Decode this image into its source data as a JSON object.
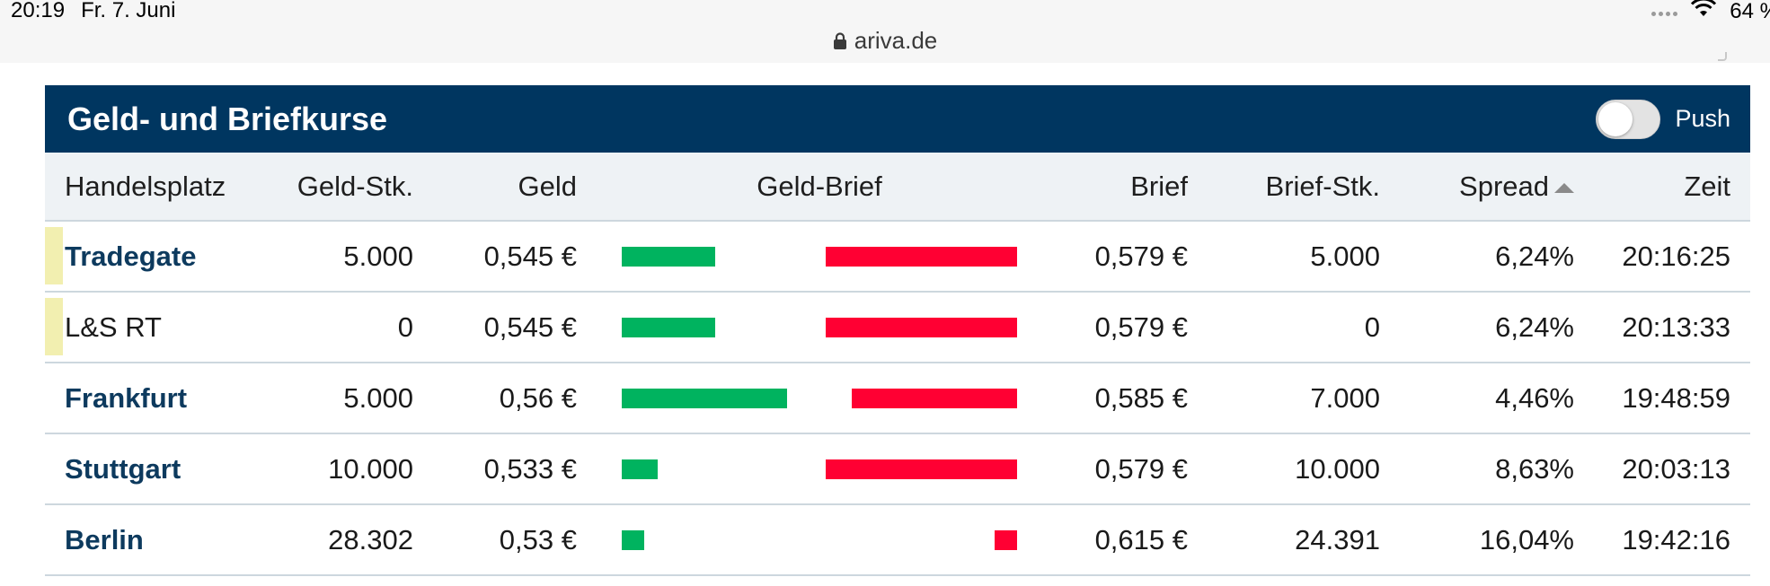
{
  "status_bar": {
    "time": "20:19",
    "date": "Fr. 7. Juni",
    "battery": "64 %",
    "wifi_icon": "wifi-icon"
  },
  "browser": {
    "url": "ariva.de",
    "lock_icon": "lock-icon"
  },
  "widget": {
    "title": "Geld- und Briefkurse",
    "push_label": "Push",
    "push_enabled": false
  },
  "table": {
    "headers": {
      "handelsplatz": "Handelsplatz",
      "geld_stk": "Geld-Stk.",
      "geld": "Geld",
      "geld_brief": "Geld-Brief",
      "brief": "Brief",
      "brief_stk": "Brief-Stk.",
      "spread": "Spread",
      "zeit": "Zeit"
    },
    "sort": {
      "column": "spread",
      "direction": "asc"
    },
    "rows": [
      {
        "handelsplatz": "Tradegate",
        "link": true,
        "highlight": true,
        "geld_stk": "5.000",
        "geld": "0,545 €",
        "brief": "0,579 €",
        "brief_stk": "5.000",
        "spread": "6,24%",
        "zeit": "20:16:25",
        "geld_bar": 0.21,
        "brief_bar": 0.43
      },
      {
        "handelsplatz": "L&S RT",
        "link": false,
        "highlight": true,
        "geld_stk": "0",
        "geld": "0,545 €",
        "brief": "0,579 €",
        "brief_stk": "0",
        "spread": "6,24%",
        "zeit": "20:13:33",
        "geld_bar": 0.21,
        "brief_bar": 0.43
      },
      {
        "handelsplatz": "Frankfurt",
        "link": true,
        "highlight": false,
        "geld_stk": "5.000",
        "geld": "0,56 €",
        "brief": "0,585 €",
        "brief_stk": "7.000",
        "spread": "4,46%",
        "zeit": "19:48:59",
        "geld_bar": 0.37,
        "brief_bar": 0.37
      },
      {
        "handelsplatz": "Stuttgart",
        "link": true,
        "highlight": false,
        "geld_stk": "10.000",
        "geld": "0,533 €",
        "brief": "0,579 €",
        "brief_stk": "10.000",
        "spread": "8,63%",
        "zeit": "20:03:13",
        "geld_bar": 0.08,
        "brief_bar": 0.43
      },
      {
        "handelsplatz": "Berlin",
        "link": true,
        "highlight": false,
        "geld_stk": "28.302",
        "geld": "0,53 €",
        "brief": "0,615 €",
        "brief_stk": "24.391",
        "spread": "16,04%",
        "zeit": "19:42:16",
        "geld_bar": 0.05,
        "brief_bar": 0.05
      }
    ]
  },
  "colors": {
    "header_bg": "#003660",
    "geld_bar": "#00b35f",
    "brief_bar": "#ff0033",
    "link": "#0d3a5e",
    "highlight_marker": "#f2efb0"
  }
}
